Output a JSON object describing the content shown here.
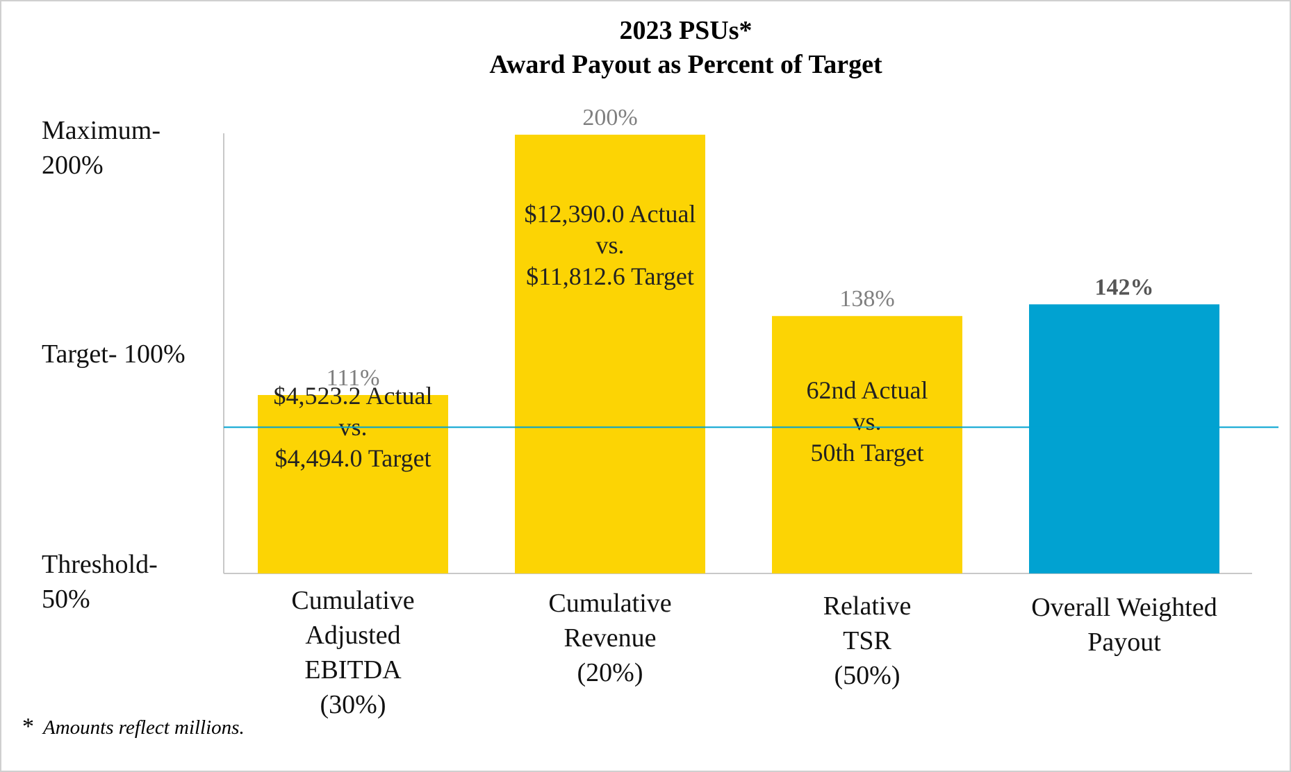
{
  "chart_data": {
    "type": "bar",
    "title_lines": [
      "2023 PSUs*",
      "Award Payout as Percent of Target"
    ],
    "categories": [
      [
        "Cumulative",
        "Adjusted",
        "EBITDA",
        "(30%)"
      ],
      [
        "Cumulative",
        "Revenue",
        "(20%)"
      ],
      [
        "Relative",
        "TSR",
        "(50%)"
      ],
      [
        "Overall Weighted",
        "Payout"
      ]
    ],
    "values": [
      111,
      200,
      138,
      142
    ],
    "value_labels": [
      "111%",
      "200%",
      "138%",
      "142%"
    ],
    "bar_colors": [
      "#fcd404",
      "#fcd404",
      "#fcd404",
      "#01a2d1"
    ],
    "bar_notes": [
      [
        "$4,523.2 Actual",
        "vs.",
        "$4,494.0 Target"
      ],
      [
        "$12,390.0 Actual",
        "vs.",
        "$11,812.6 Target"
      ],
      [
        "62nd Actual",
        "vs.",
        "50th Target"
      ],
      []
    ],
    "y_axis_labels": [
      {
        "value": 200,
        "lines": [
          "Maximum-",
          "200%"
        ]
      },
      {
        "value": 100,
        "lines": [
          "Target- 100%"
        ]
      },
      {
        "value": 50,
        "lines": [
          "Threshold-",
          "50%"
        ]
      }
    ],
    "ylim": [
      50,
      200
    ],
    "reference_line": {
      "value": 100,
      "color": "#01a2d1"
    },
    "footnote_symbol": "*",
    "footnote": "Amounts reflect millions."
  }
}
